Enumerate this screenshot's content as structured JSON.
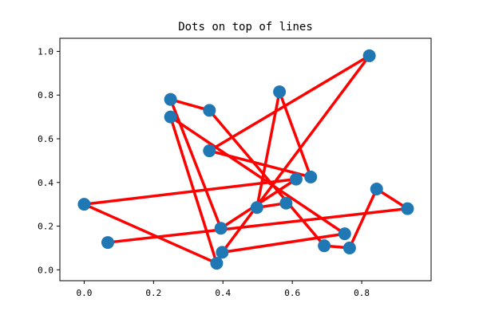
{
  "chart_data": {
    "type": "scatter",
    "title": "Dots on top of lines",
    "xlabel": "",
    "ylabel": "",
    "xlim": [
      -0.07,
      1.0
    ],
    "ylim": [
      -0.05,
      1.06
    ],
    "xticks": [
      0.0,
      0.2,
      0.4,
      0.6,
      0.8
    ],
    "yticks": [
      0.0,
      0.2,
      0.4,
      0.6,
      0.8,
      1.0
    ],
    "xtick_labels": [
      "0.0",
      "0.2",
      "0.4",
      "0.6",
      "0.8"
    ],
    "ytick_labels": [
      "0.0",
      "0.2",
      "0.4",
      "0.6",
      "0.8",
      "1.0"
    ],
    "grid": false,
    "line_color": "#ff0000",
    "marker_color": "#1f77b4",
    "series": [
      {
        "x": [
          0.068,
          0.932,
          0.843,
          0.765,
          0.692,
          0.361,
          0.249,
          0.394,
          0.611,
          0.0,
          0.382,
          0.249,
          0.751,
          0.398,
          0.822,
          0.361,
          0.653,
          0.563,
          0.498,
          0.582
        ],
        "y": [
          0.125,
          0.28,
          0.37,
          0.1,
          0.11,
          0.73,
          0.78,
          0.19,
          0.415,
          0.3,
          0.03,
          0.7,
          0.165,
          0.08,
          0.98,
          0.545,
          0.425,
          0.815,
          0.285,
          0.305
        ]
      }
    ]
  }
}
